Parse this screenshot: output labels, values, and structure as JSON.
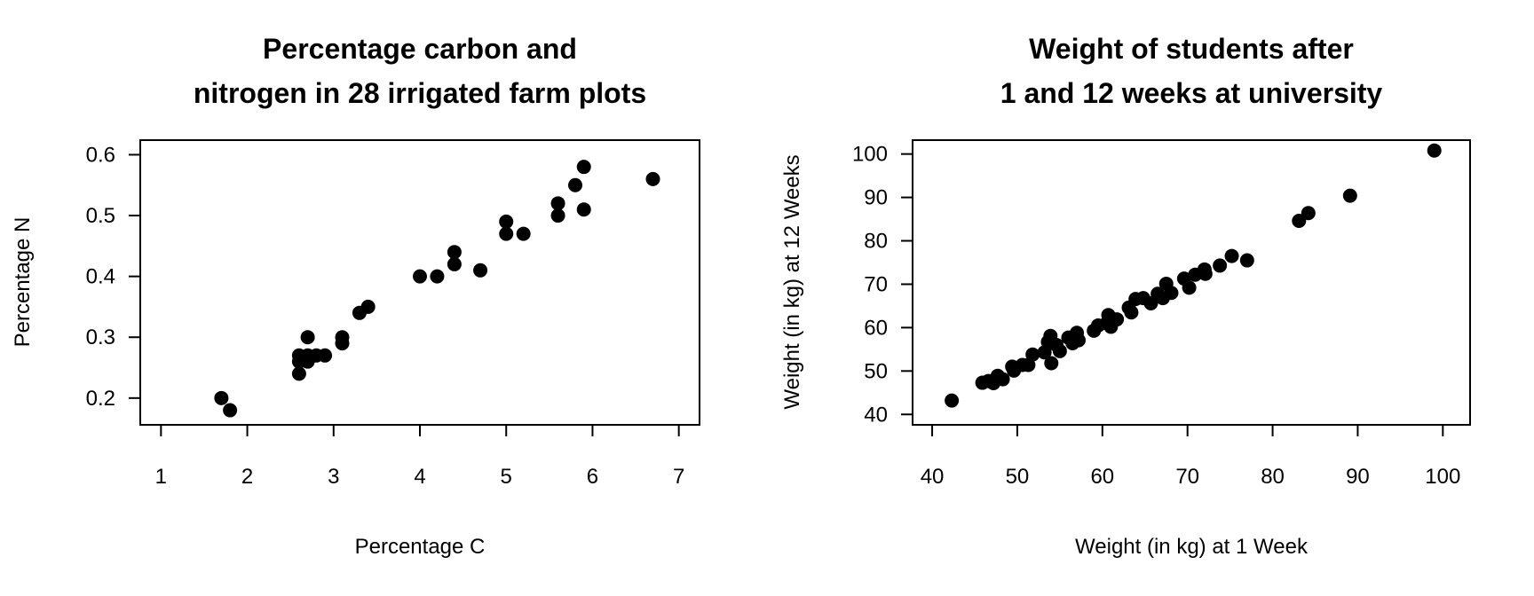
{
  "chart_data": [
    {
      "type": "scatter",
      "title": [
        "Percentage carbon and",
        "nitrogen in 28 irrigated farm plots"
      ],
      "xlabel": "Percentage C",
      "ylabel": "Percentage N",
      "xlim": [
        0.76,
        7.24
      ],
      "ylim": [
        0.156,
        0.624
      ],
      "xticks": [
        "1",
        "2",
        "3",
        "4",
        "5",
        "6",
        "7"
      ],
      "yticks": [
        "0.2",
        "0.3",
        "0.4",
        "0.5",
        "0.6"
      ],
      "grid": false,
      "color": "#000000",
      "points": [
        [
          1.7,
          0.2
        ],
        [
          1.8,
          0.18
        ],
        [
          2.6,
          0.27
        ],
        [
          2.6,
          0.26
        ],
        [
          2.6,
          0.24
        ],
        [
          2.7,
          0.3
        ],
        [
          2.7,
          0.27
        ],
        [
          2.7,
          0.26
        ],
        [
          2.8,
          0.27
        ],
        [
          2.9,
          0.27
        ],
        [
          3.1,
          0.3
        ],
        [
          3.1,
          0.29
        ],
        [
          3.3,
          0.34
        ],
        [
          3.4,
          0.35
        ],
        [
          4.0,
          0.4
        ],
        [
          4.2,
          0.4
        ],
        [
          4.4,
          0.44
        ],
        [
          4.4,
          0.42
        ],
        [
          4.7,
          0.41
        ],
        [
          5.0,
          0.49
        ],
        [
          5.0,
          0.47
        ],
        [
          5.2,
          0.47
        ],
        [
          5.6,
          0.52
        ],
        [
          5.6,
          0.5
        ],
        [
          5.8,
          0.55
        ],
        [
          5.9,
          0.58
        ],
        [
          5.9,
          0.51
        ],
        [
          6.7,
          0.56
        ]
      ]
    },
    {
      "type": "scatter",
      "title": [
        "Weight of students after",
        "1 and 12 weeks at university"
      ],
      "xlabel": "Weight (in kg) at 1 Week",
      "ylabel": "Weight (in kg) at 12 Weeks",
      "xlim": [
        37.7,
        103.2
      ],
      "ylim": [
        37.6,
        103.2
      ],
      "xticks": [
        "40",
        "50",
        "60",
        "70",
        "80",
        "90",
        "100"
      ],
      "yticks": [
        "40",
        "50",
        "60",
        "70",
        "80",
        "90",
        "100"
      ],
      "grid": false,
      "color": "#000000",
      "points": [
        [
          42.3,
          43.2
        ],
        [
          45.9,
          47.3
        ],
        [
          46.6,
          47.7
        ],
        [
          47.2,
          47.2
        ],
        [
          47.7,
          48.9
        ],
        [
          48.3,
          48.1
        ],
        [
          49.4,
          51.0
        ],
        [
          49.6,
          50.1
        ],
        [
          50.6,
          51.4
        ],
        [
          51.3,
          51.4
        ],
        [
          51.8,
          53.8
        ],
        [
          53.2,
          54.3
        ],
        [
          53.9,
          58.1
        ],
        [
          53.6,
          56.7
        ],
        [
          54.0,
          51.8
        ],
        [
          54.6,
          56.0
        ],
        [
          55.0,
          54.6
        ],
        [
          56.0,
          57.7
        ],
        [
          56.5,
          56.4
        ],
        [
          57.0,
          58.8
        ],
        [
          57.2,
          57.1
        ],
        [
          59.0,
          59.3
        ],
        [
          59.5,
          60.5
        ],
        [
          60.5,
          61.0
        ],
        [
          60.7,
          62.9
        ],
        [
          61.0,
          60.2
        ],
        [
          61.7,
          61.9
        ],
        [
          63.1,
          64.6
        ],
        [
          63.4,
          63.5
        ],
        [
          63.9,
          66.6
        ],
        [
          64.8,
          66.8
        ],
        [
          65.7,
          65.6
        ],
        [
          66.5,
          67.8
        ],
        [
          67.1,
          66.8
        ],
        [
          67.5,
          70.1
        ],
        [
          68.1,
          68.0
        ],
        [
          69.6,
          71.3
        ],
        [
          70.2,
          69.2
        ],
        [
          70.9,
          72.2
        ],
        [
          72.0,
          73.4
        ],
        [
          72.1,
          72.4
        ],
        [
          73.8,
          74.3
        ],
        [
          75.2,
          76.5
        ],
        [
          77.0,
          75.5
        ],
        [
          83.1,
          84.6
        ],
        [
          84.2,
          86.4
        ],
        [
          89.1,
          90.4
        ],
        [
          99.0,
          100.8
        ]
      ]
    }
  ]
}
